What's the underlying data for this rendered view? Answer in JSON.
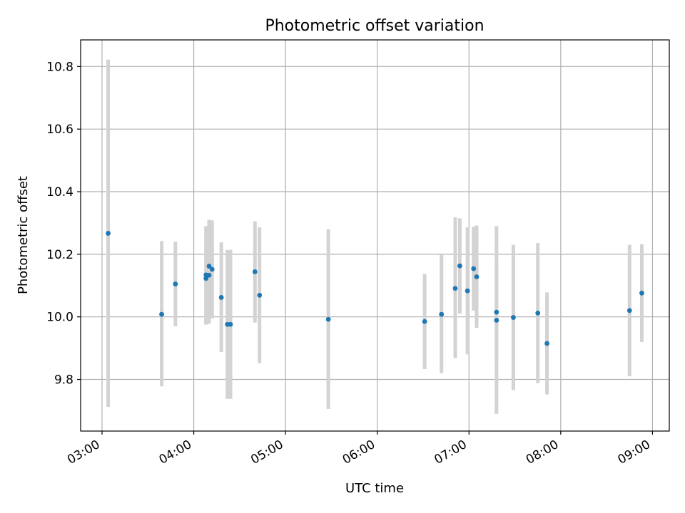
{
  "chart_data": {
    "type": "scatter",
    "title": "Photometric offset variation",
    "xlabel": "UTC time",
    "ylabel": "Photometric offset",
    "xlim": [
      "02:46",
      "09:11"
    ],
    "ylim": [
      9.635,
      10.885
    ],
    "x_ticks": [
      "03:00",
      "04:00",
      "05:00",
      "06:00",
      "07:00",
      "08:00",
      "09:00"
    ],
    "y_ticks": [
      9.8,
      10.0,
      10.2,
      10.4,
      10.6,
      10.8
    ],
    "y_tick_labels": [
      "9.8",
      "10.0",
      "10.2",
      "10.4",
      "10.6",
      "10.8"
    ],
    "grid": true,
    "marker_color": "#1f77b4",
    "errorbar_color": "#d3d3d3",
    "series": [
      {
        "points": [
          {
            "x": "03:04",
            "y": 10.267,
            "ylow": 9.712,
            "yhigh": 10.822
          },
          {
            "x": "03:39",
            "y": 10.008,
            "ylow": 9.778,
            "yhigh": 10.242
          },
          {
            "x": "03:48",
            "y": 10.105,
            "ylow": 9.97,
            "yhigh": 10.24
          },
          {
            "x": "04:08",
            "y": 10.123,
            "ylow": 9.975,
            "yhigh": 10.29
          },
          {
            "x": "04:08",
            "y": 10.134,
            "ylow": 9.978,
            "yhigh": 10.28
          },
          {
            "x": "04:10",
            "y": 10.162,
            "ylow": 10.01,
            "yhigh": 10.31
          },
          {
            "x": "04:10",
            "y": 10.133,
            "ylow": 9.978,
            "yhigh": 10.3
          },
          {
            "x": "04:12",
            "y": 10.152,
            "ylow": 9.995,
            "yhigh": 10.308
          },
          {
            "x": "04:18",
            "y": 10.062,
            "ylow": 9.888,
            "yhigh": 10.238
          },
          {
            "x": "04:22",
            "y": 9.976,
            "ylow": 9.738,
            "yhigh": 10.214
          },
          {
            "x": "04:24",
            "y": 9.976,
            "ylow": 9.738,
            "yhigh": 10.214
          },
          {
            "x": "04:40",
            "y": 10.144,
            "ylow": 9.982,
            "yhigh": 10.305
          },
          {
            "x": "04:43",
            "y": 10.069,
            "ylow": 9.852,
            "yhigh": 10.286
          },
          {
            "x": "05:28",
            "y": 9.992,
            "ylow": 9.706,
            "yhigh": 10.28
          },
          {
            "x": "06:31",
            "y": 9.985,
            "ylow": 9.833,
            "yhigh": 10.137
          },
          {
            "x": "06:42",
            "y": 10.008,
            "ylow": 9.82,
            "yhigh": 10.198
          },
          {
            "x": "06:51",
            "y": 10.091,
            "ylow": 9.868,
            "yhigh": 10.318
          },
          {
            "x": "06:54",
            "y": 10.163,
            "ylow": 10.01,
            "yhigh": 10.315
          },
          {
            "x": "06:59",
            "y": 10.083,
            "ylow": 9.88,
            "yhigh": 10.286
          },
          {
            "x": "07:03",
            "y": 10.154,
            "ylow": 10.02,
            "yhigh": 10.288
          },
          {
            "x": "07:05",
            "y": 10.128,
            "ylow": 9.965,
            "yhigh": 10.292
          },
          {
            "x": "07:18",
            "y": 10.015,
            "ylow": 9.87,
            "yhigh": 10.16
          },
          {
            "x": "07:18",
            "y": 9.989,
            "ylow": 9.69,
            "yhigh": 10.29
          },
          {
            "x": "07:29",
            "y": 9.998,
            "ylow": 9.766,
            "yhigh": 10.23
          },
          {
            "x": "07:45",
            "y": 10.012,
            "ylow": 9.788,
            "yhigh": 10.236
          },
          {
            "x": "07:51",
            "y": 9.915,
            "ylow": 9.752,
            "yhigh": 10.078
          },
          {
            "x": "08:45",
            "y": 10.02,
            "ylow": 9.81,
            "yhigh": 10.23
          },
          {
            "x": "08:53",
            "y": 10.076,
            "ylow": 9.92,
            "yhigh": 10.232
          }
        ]
      }
    ]
  }
}
